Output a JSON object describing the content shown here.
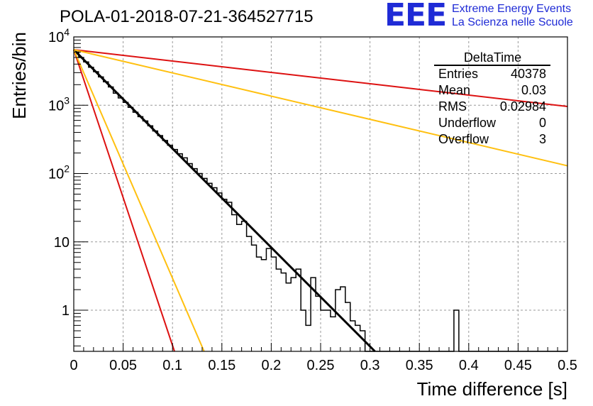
{
  "logo": {
    "acronym": "EEE",
    "line1": "Extreme Energy Events",
    "line2": "La Scienza nelle Scuole",
    "color": "#1f2bd6"
  },
  "chart_data": {
    "type": "bar",
    "title": "POLA-01-2018-07-21-364527715",
    "xlabel": "Time difference [s]",
    "ylabel": "Entries/bin",
    "xlim": [
      0,
      0.5
    ],
    "ylim": [
      0.25,
      10000
    ],
    "yscale": "log",
    "grid": true,
    "x_ticks": [
      "0",
      "0.05",
      "0.1",
      "0.15",
      "0.2",
      "0.25",
      "0.3",
      "0.35",
      "0.4",
      "0.45",
      "0.5"
    ],
    "y_ticks": [
      {
        "value": 1,
        "label": "1"
      },
      {
        "value": 10,
        "label": "10"
      },
      {
        "value": 100,
        "label": "10",
        "exp": "2"
      },
      {
        "value": 1000,
        "label": "10",
        "exp": "3"
      },
      {
        "value": 10000,
        "label": "10",
        "exp": "4"
      }
    ],
    "histogram": {
      "bin_width": 0.005,
      "values": [
        6000,
        5000,
        4300,
        3600,
        3100,
        2600,
        2200,
        1850,
        1500,
        1280,
        1100,
        930,
        790,
        680,
        590,
        500,
        420,
        360,
        305,
        260,
        225,
        195,
        170,
        140,
        118,
        100,
        85,
        72,
        62,
        52,
        42,
        38,
        25,
        18,
        20,
        12,
        9,
        6,
        5.5,
        8,
        6,
        4,
        3.5,
        2.5,
        3,
        4,
        1,
        0.6,
        3,
        1.6,
        1,
        1,
        0.8,
        2,
        2.2,
        1.3,
        0.7,
        0.6,
        0.5,
        0,
        0,
        0,
        0,
        0,
        0,
        0,
        0,
        0,
        0,
        0,
        0,
        0,
        0,
        0,
        0,
        0,
        0,
        1,
        0,
        0,
        0,
        0,
        0,
        0,
        0,
        0,
        0,
        0,
        0,
        0,
        0,
        0,
        0,
        0,
        0,
        0,
        0,
        0,
        0,
        0
      ],
      "color": "#000000"
    },
    "series": [
      {
        "color": "#000000",
        "x": [
          0,
          0.305
        ],
        "y": [
          6500,
          0.25
        ],
        "width": 3
      },
      {
        "color": "#dd1111",
        "x": [
          0,
          0.102
        ],
        "y": [
          6500,
          0.25
        ],
        "width": 2
      },
      {
        "color": "#ffc010",
        "x": [
          0,
          0.132
        ],
        "y": [
          6500,
          0.25
        ],
        "width": 2
      },
      {
        "color": "#dd1111",
        "x": [
          0,
          0.5
        ],
        "y": [
          6500,
          960
        ],
        "width": 2
      },
      {
        "color": "#ffc010",
        "x": [
          0,
          0.5
        ],
        "y": [
          6500,
          130
        ],
        "width": 2
      }
    ],
    "stats": {
      "name": "DeltaTime",
      "rows": [
        {
          "label": "Entries",
          "value": "40378"
        },
        {
          "label": "Mean",
          "value": "0.03"
        },
        {
          "label": "RMS",
          "value": "0.02984"
        },
        {
          "label": "Underflow",
          "value": "0"
        },
        {
          "label": "Overflow",
          "value": "3"
        }
      ]
    }
  }
}
